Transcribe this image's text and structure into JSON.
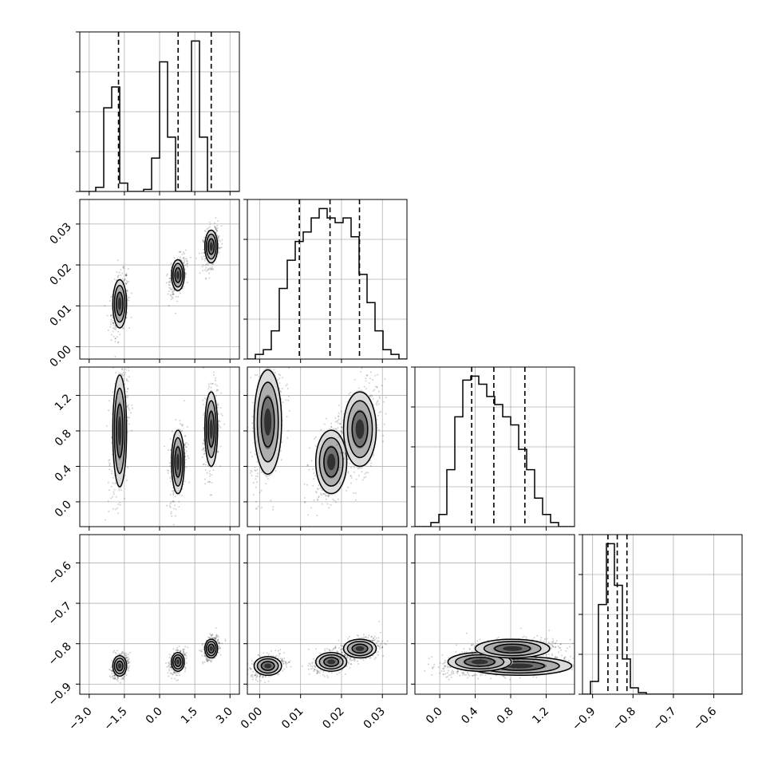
{
  "chart_data": {
    "type": "corner",
    "parameters": [
      "",
      "",
      "",
      ""
    ],
    "grid": true,
    "ranges": [
      [
        -3.4,
        3.4
      ],
      [
        -0.003,
        0.036
      ],
      [
        -0.28,
        1.52
      ],
      [
        -0.925,
        -0.53
      ]
    ],
    "ticks": [
      [
        "-3.0",
        "-1.5",
        "0.0",
        "1.5",
        "3.0"
      ],
      [
        "0.00",
        "0.01",
        "0.02",
        "0.03"
      ],
      [
        "0.0",
        "0.4",
        "0.8",
        "1.2"
      ],
      [
        "-0.9",
        "-0.8",
        "-0.7",
        "-0.6"
      ]
    ],
    "tick_values": [
      [
        -3.0,
        -1.5,
        0.0,
        1.5,
        3.0
      ],
      [
        0.0,
        0.01,
        0.02,
        0.03
      ],
      [
        0.0,
        0.4,
        0.8,
        1.2
      ],
      [
        -0.9,
        -0.8,
        -0.7,
        -0.6
      ]
    ],
    "quantiles": [
      [
        -1.75,
        0.79,
        2.2
      ],
      [
        0.0097,
        0.0172,
        0.0244
      ],
      [
        0.36,
        0.61,
        0.96
      ],
      [
        -0.862,
        -0.839,
        -0.815
      ]
    ],
    "histograms": [
      {
        "edges_start": -3.4,
        "bin_width": 0.34,
        "counts": [
          0,
          0,
          0.01,
          0.2,
          0.25,
          0.02,
          0,
          0,
          0.005,
          0.08,
          0.31,
          0.13,
          0,
          0,
          0.36,
          0.13,
          0,
          0,
          0,
          0
        ]
      },
      {
        "edges_start": -0.003,
        "bin_width": 0.00195,
        "counts": [
          0,
          0.01,
          0.02,
          0.06,
          0.15,
          0.21,
          0.25,
          0.27,
          0.3,
          0.32,
          0.3,
          0.29,
          0.3,
          0.26,
          0.18,
          0.12,
          0.06,
          0.02,
          0.01,
          0
        ]
      },
      {
        "edges_start": -0.28,
        "bin_width": 0.09,
        "counts": [
          0,
          0,
          0.01,
          0.03,
          0.14,
          0.27,
          0.36,
          0.37,
          0.35,
          0.32,
          0.3,
          0.27,
          0.25,
          0.19,
          0.14,
          0.07,
          0.03,
          0.01,
          0,
          0
        ]
      },
      {
        "edges_start": -0.925,
        "bin_width": 0.01975,
        "counts": [
          0,
          0.04,
          0.28,
          0.47,
          0.34,
          0.11,
          0.02,
          0.005,
          0,
          0,
          0,
          0,
          0,
          0,
          0,
          0,
          0,
          0,
          0,
          0
        ]
      }
    ],
    "modes": [
      {
        "mu": [
          -1.7,
          0.002,
          0.9,
          -0.855
        ],
        "sd": [
          0.15,
          0.0016,
          0.28,
          0.011
        ],
        "weight": 0.32
      },
      {
        "mu": [
          0.78,
          0.0175,
          0.45,
          -0.845
        ],
        "sd": [
          0.15,
          0.0018,
          0.17,
          0.011
        ],
        "weight": 0.34
      },
      {
        "mu": [
          2.2,
          0.0245,
          0.82,
          -0.812
        ],
        "sd": [
          0.14,
          0.0019,
          0.2,
          0.011
        ],
        "weight": 0.34
      }
    ],
    "scatter_modes_x0": [
      {
        "mu": [
          -1.7,
          0.0105,
          0.8,
          -0.855
        ],
        "sd": [
          0.14,
          0.0028,
          0.3,
          0.012
        ]
      },
      {
        "mu": [
          0.78,
          0.0175,
          0.45,
          -0.845
        ],
        "sd": [
          0.13,
          0.0018,
          0.17,
          0.011
        ]
      },
      {
        "mu": [
          2.2,
          0.0245,
          0.82,
          -0.812
        ],
        "sd": [
          0.13,
          0.0019,
          0.2,
          0.011
        ]
      }
    ],
    "colors": {
      "points": "#000000",
      "contour": "#000000",
      "density": "#000000",
      "frame": "#000000",
      "grid": "#b0b0b0"
    }
  }
}
